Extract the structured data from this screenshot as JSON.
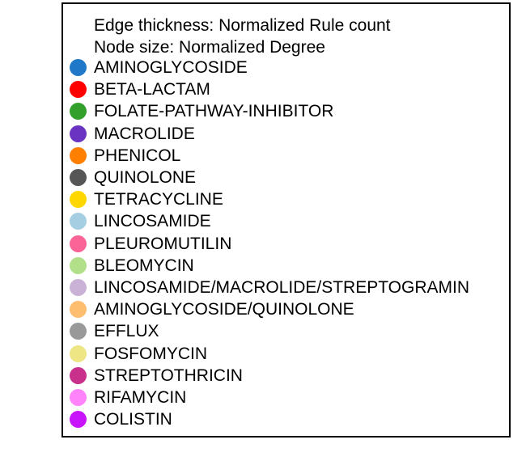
{
  "legend": {
    "edge_thickness": "Edge thickness: Normalized Rule count",
    "node_size": "Node size: Normalized Degree",
    "items": [
      {
        "label": "AMINOGLYCOSIDE",
        "color": "#1f78c8"
      },
      {
        "label": "BETA-LACTAM",
        "color": "#ff0000"
      },
      {
        "label": "FOLATE-PATHWAY-INHIBITOR",
        "color": "#33a02c"
      },
      {
        "label": "MACROLIDE",
        "color": "#6a33c2"
      },
      {
        "label": "PHENICOL",
        "color": "#ff7f00"
      },
      {
        "label": "QUINOLONE",
        "color": "#565656"
      },
      {
        "label": "TETRACYCLINE",
        "color": "#ffd700"
      },
      {
        "label": "LINCOSAMIDE",
        "color": "#a6cee3"
      },
      {
        "label": "PLEUROMUTILIN",
        "color": "#fb6496"
      },
      {
        "label": "BLEOMYCIN",
        "color": "#b2df8a"
      },
      {
        "label": "LINCOSAMIDE/MACROLIDE/STREPTOGRAMIN",
        "color": "#cab2d6"
      },
      {
        "label": "AMINOGLYCOSIDE/QUINOLONE",
        "color": "#fdbf6f"
      },
      {
        "label": "EFFLUX",
        "color": "#999999"
      },
      {
        "label": "FOSFOMYCIN",
        "color": "#eee685"
      },
      {
        "label": "STREPTOTHRICIN",
        "color": "#c8308c"
      },
      {
        "label": "RIFAMYCIN",
        "color": "#ff83fa"
      },
      {
        "label": "COLISTIN",
        "color": "#c814fa"
      }
    ]
  }
}
